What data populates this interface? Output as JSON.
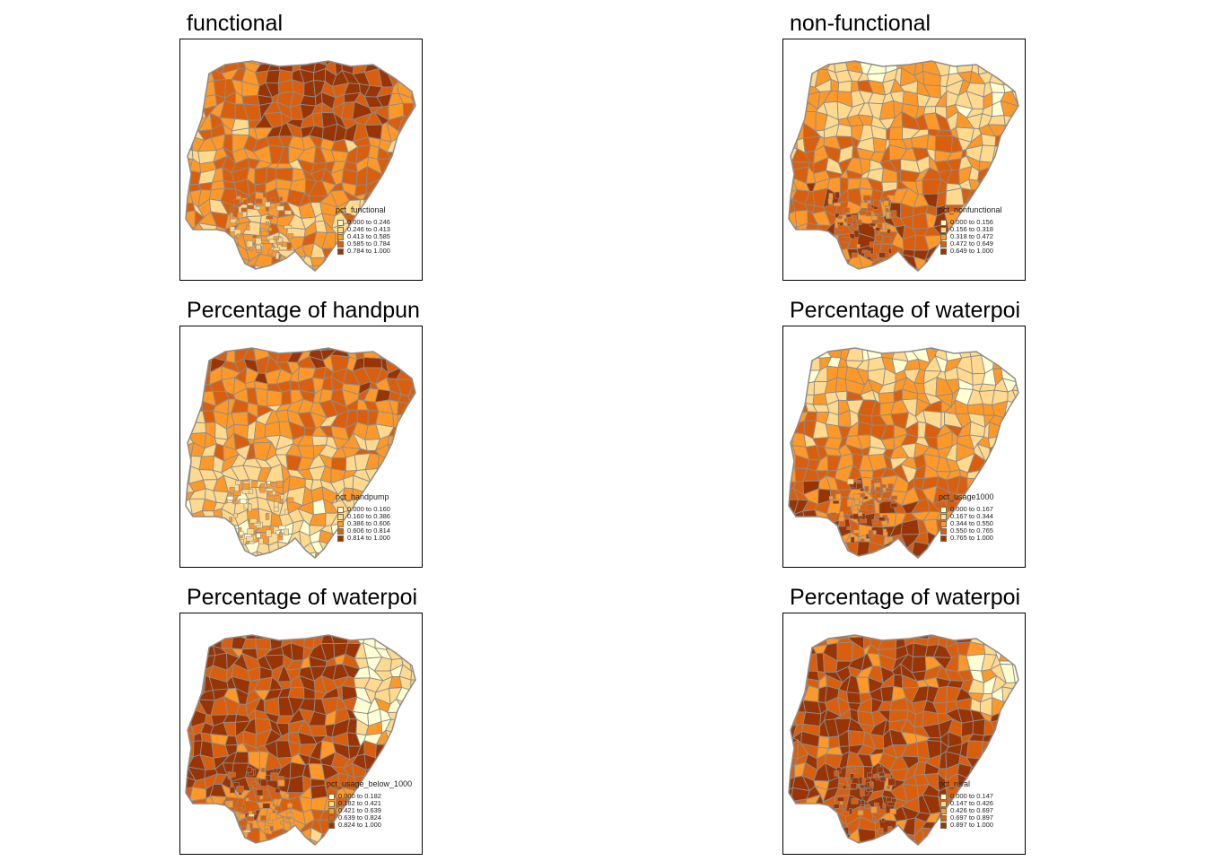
{
  "palette": [
    "#ffffd4",
    "#fed98e",
    "#fe9929",
    "#d95f0e",
    "#993404"
  ],
  "panels": [
    {
      "title": "functional",
      "legend_title": "pct_functional",
      "classes": [
        "0.000 to 0.246",
        "0.246 to 0.413",
        "0.413 to 0.585",
        "0.585 to 0.784",
        "0.784 to 1.000"
      ],
      "pattern": "mixed-dark-north"
    },
    {
      "title": "non-functional",
      "legend_title": "pct_nonfunctional",
      "classes": [
        "0.000 to 0.156",
        "0.156 to 0.318",
        "0.318 to 0.472",
        "0.472 to 0.649",
        "0.649 to 1.000"
      ],
      "pattern": "light-north-dark-south"
    },
    {
      "title": "Percentage of handpun",
      "legend_title": "pct_handpump",
      "classes": [
        "0.000 to 0.160",
        "0.160 to 0.386",
        "0.386 to 0.606",
        "0.606 to 0.814",
        "0.814 to 1.000"
      ],
      "pattern": "dark-north-light-south"
    },
    {
      "title": "Percentage of waterpoi",
      "legend_title": "pct_usage1000",
      "classes": [
        "0.000 to 0.167",
        "0.167 to 0.344",
        "0.344 to 0.550",
        "0.550 to 0.765",
        "0.765 to 1.000"
      ],
      "pattern": "light-north-dark-south"
    },
    {
      "title": "Percentage of waterpoi",
      "legend_title": "pct_usage_below_1000",
      "classes": [
        "0.000 to 0.182",
        "0.182 to 0.421",
        "0.421 to 0.639",
        "0.639 to 0.824",
        "0.824 to 1.000"
      ],
      "pattern": "dark-north-light-east"
    },
    {
      "title": "Percentage of waterpoi",
      "legend_title": "pct_rural",
      "classes": [
        "0.000 to 0.147",
        "0.147 to 0.426",
        "0.426 to 0.697",
        "0.697 to 0.897",
        "0.897 to 1.000"
      ],
      "pattern": "mostly-dark"
    }
  ]
}
